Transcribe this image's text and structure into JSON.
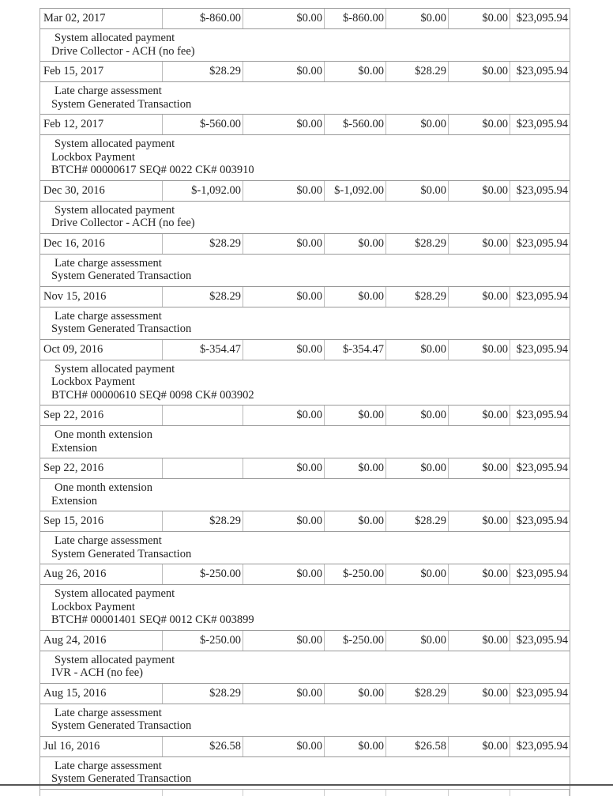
{
  "transactions": [
    {
      "date": "Mar 02, 2017",
      "amount": "$-860.00",
      "c2": "$0.00",
      "c3": "$-860.00",
      "c4": "$0.00",
      "c5": "$0.00",
      "balance": "$23,095.94",
      "desc": [
        "System allocated payment",
        "Drive Collector - ACH (no fee)"
      ]
    },
    {
      "date": "Feb 15, 2017",
      "amount": "$28.29",
      "c2": "$0.00",
      "c3": "$0.00",
      "c4": "$28.29",
      "c5": "$0.00",
      "balance": "$23,095.94",
      "desc": [
        "Late charge assessment",
        "System Generated Transaction"
      ]
    },
    {
      "date": "Feb 12, 2017",
      "amount": "$-560.00",
      "c2": "$0.00",
      "c3": "$-560.00",
      "c4": "$0.00",
      "c5": "$0.00",
      "balance": "$23,095.94",
      "desc": [
        "System allocated payment",
        "Lockbox Payment",
        "BTCH# 00000617 SEQ# 0022 CK# 003910"
      ]
    },
    {
      "date": "Dec 30, 2016",
      "amount": "$-1,092.00",
      "c2": "$0.00",
      "c3": "$-1,092.00",
      "c4": "$0.00",
      "c5": "$0.00",
      "balance": "$23,095.94",
      "desc": [
        "System allocated payment",
        "Drive Collector - ACH (no fee)"
      ]
    },
    {
      "date": "Dec 16, 2016",
      "amount": "$28.29",
      "c2": "$0.00",
      "c3": "$0.00",
      "c4": "$28.29",
      "c5": "$0.00",
      "balance": "$23,095.94",
      "desc": [
        "Late charge assessment",
        "System Generated Transaction"
      ]
    },
    {
      "date": "Nov 15, 2016",
      "amount": "$28.29",
      "c2": "$0.00",
      "c3": "$0.00",
      "c4": "$28.29",
      "c5": "$0.00",
      "balance": "$23,095.94",
      "desc": [
        "Late charge assessment",
        "System Generated Transaction"
      ]
    },
    {
      "date": "Oct 09, 2016",
      "amount": "$-354.47",
      "c2": "$0.00",
      "c3": "$-354.47",
      "c4": "$0.00",
      "c5": "$0.00",
      "balance": "$23,095.94",
      "desc": [
        "System allocated payment",
        "Lockbox Payment",
        "BTCH# 00000610 SEQ# 0098 CK# 003902"
      ]
    },
    {
      "date": "Sep 22, 2016",
      "amount": "",
      "c2": "$0.00",
      "c3": "$0.00",
      "c4": "$0.00",
      "c5": "$0.00",
      "balance": "$23,095.94",
      "desc": [
        "One month extension",
        "Extension"
      ]
    },
    {
      "date": "Sep 22, 2016",
      "amount": "",
      "c2": "$0.00",
      "c3": "$0.00",
      "c4": "$0.00",
      "c5": "$0.00",
      "balance": "$23,095.94",
      "desc": [
        "One month extension",
        "Extension"
      ]
    },
    {
      "date": "Sep 15, 2016",
      "amount": "$28.29",
      "c2": "$0.00",
      "c3": "$0.00",
      "c4": "$28.29",
      "c5": "$0.00",
      "balance": "$23,095.94",
      "desc": [
        "Late charge assessment",
        "System Generated Transaction"
      ]
    },
    {
      "date": "Aug 26, 2016",
      "amount": "$-250.00",
      "c2": "$0.00",
      "c3": "$-250.00",
      "c4": "$0.00",
      "c5": "$0.00",
      "balance": "$23,095.94",
      "desc": [
        "System allocated payment",
        "Lockbox Payment",
        "BTCH# 00001401 SEQ# 0012 CK# 003899"
      ]
    },
    {
      "date": "Aug 24, 2016",
      "amount": "$-250.00",
      "c2": "$0.00",
      "c3": "$-250.00",
      "c4": "$0.00",
      "c5": "$0.00",
      "balance": "$23,095.94",
      "desc": [
        "System allocated payment",
        "IVR - ACH (no fee)"
      ]
    },
    {
      "date": "Aug 15, 2016",
      "amount": "$28.29",
      "c2": "$0.00",
      "c3": "$0.00",
      "c4": "$28.29",
      "c5": "$0.00",
      "balance": "$23,095.94",
      "desc": [
        "Late charge assessment",
        "System Generated Transaction"
      ]
    },
    {
      "date": "Jul 16, 2016",
      "amount": "$26.58",
      "c2": "$0.00",
      "c3": "$0.00",
      "c4": "$26.58",
      "c5": "$0.00",
      "balance": "$23,095.94",
      "desc": [
        "Late charge assessment",
        "System Generated Transaction"
      ]
    }
  ]
}
